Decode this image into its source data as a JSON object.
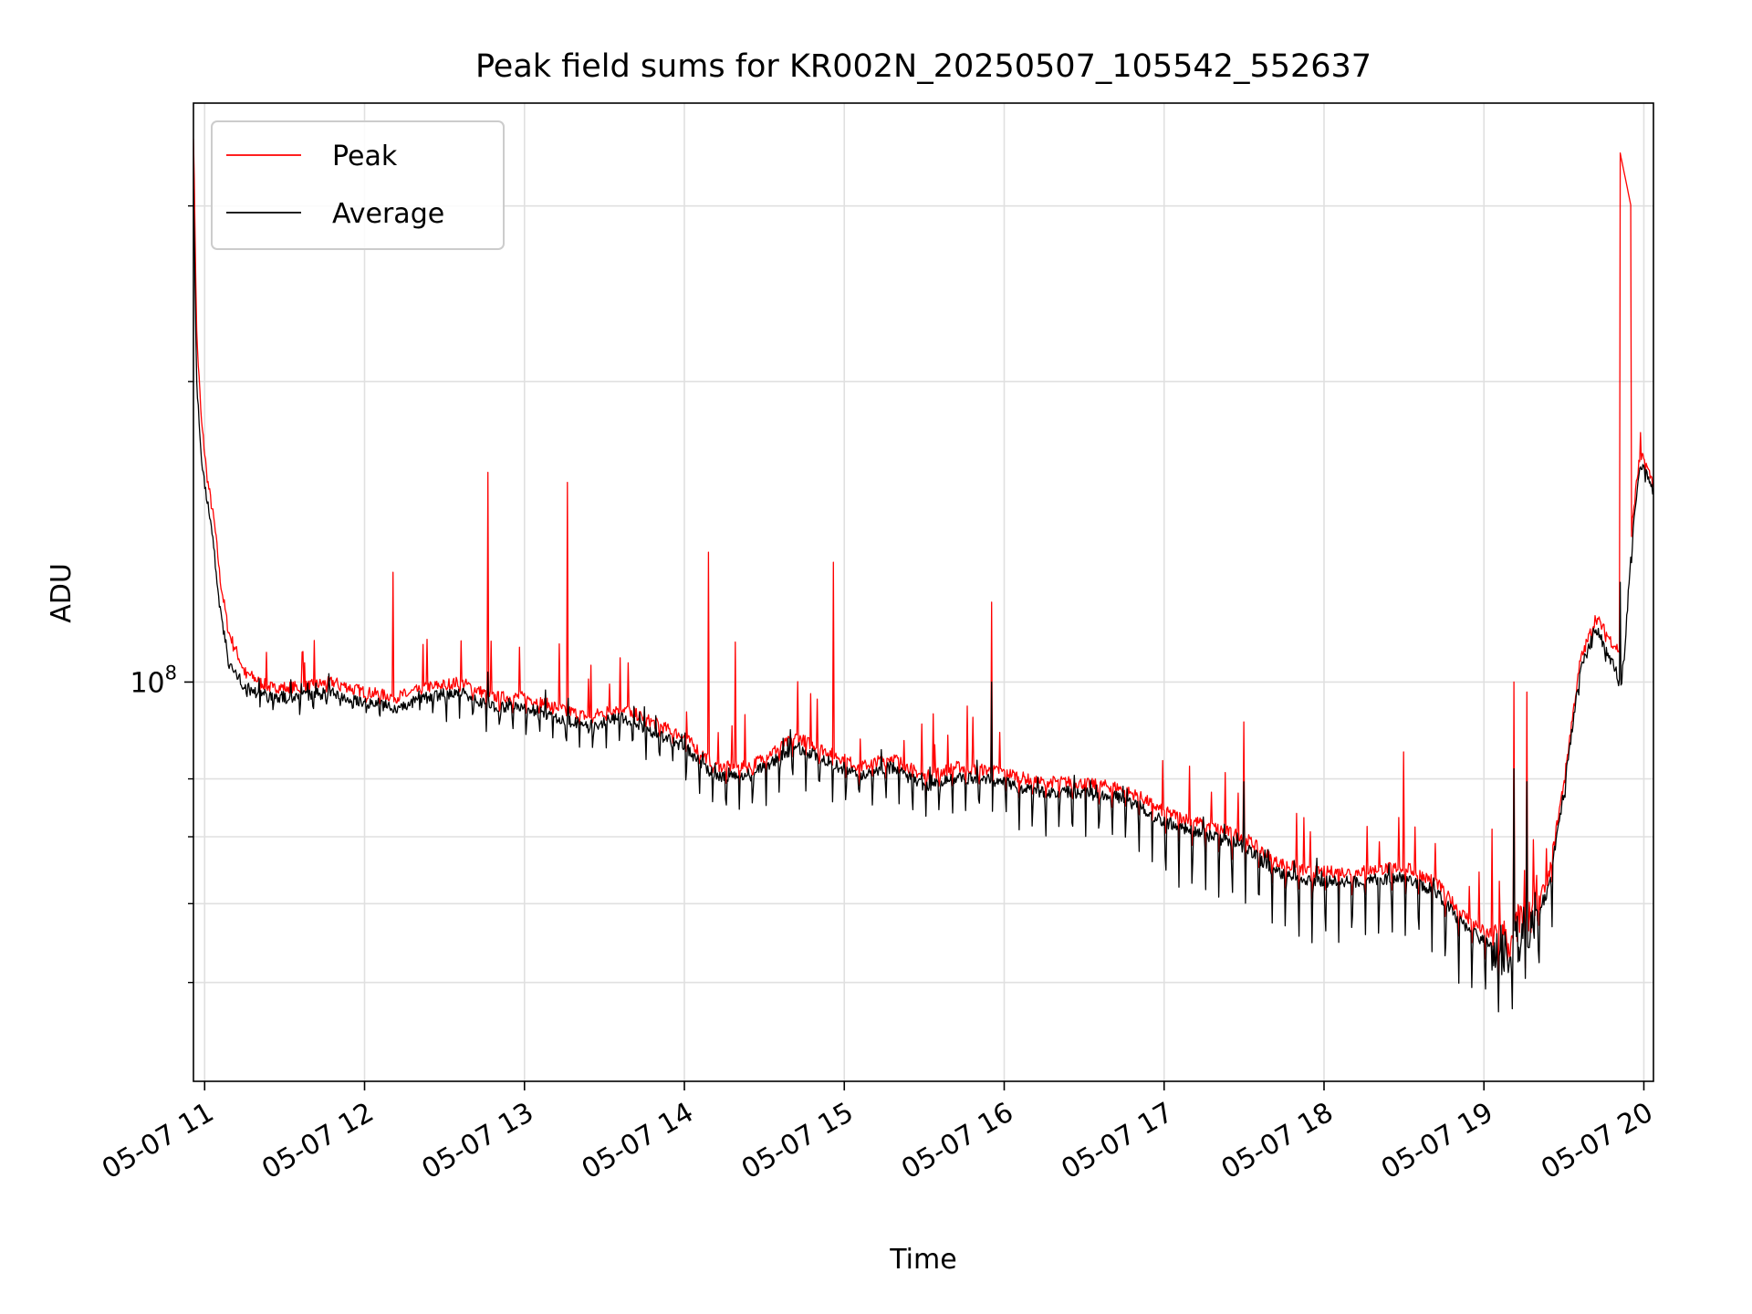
{
  "chart_data": {
    "type": "line",
    "title": "Peak field sums for KR002N_20250507_105542_552637",
    "xlabel": "Time",
    "ylabel": "ADU",
    "yscale": "log",
    "xlim": [
      10.93,
      20.06
    ],
    "ylim_log10": [
      7.6,
      8.58
    ],
    "grid": true,
    "legend_position": "upper-left",
    "x_ticks": [
      {
        "value": 11,
        "label": "05-07 11"
      },
      {
        "value": 12,
        "label": "05-07 12"
      },
      {
        "value": 13,
        "label": "05-07 13"
      },
      {
        "value": 14,
        "label": "05-07 14"
      },
      {
        "value": 15,
        "label": "05-07 15"
      },
      {
        "value": 16,
        "label": "05-07 16"
      },
      {
        "value": 17,
        "label": "05-07 17"
      },
      {
        "value": 18,
        "label": "05-07 18"
      },
      {
        "value": 19,
        "label": "05-07 19"
      },
      {
        "value": 20,
        "label": "05-07 20"
      }
    ],
    "y_ticks": [
      {
        "log10": 8.0,
        "label_base": "10",
        "label_exp": "8"
      }
    ],
    "y_minor_ticks_log10": [
      7.699,
      7.778,
      7.845,
      7.903,
      8.301,
      8.477
    ],
    "series": [
      {
        "name": "Peak",
        "color": "#ff0000",
        "base": [
          [
            10.93,
            8.55
          ],
          [
            10.95,
            8.35
          ],
          [
            10.98,
            8.26
          ],
          [
            11.02,
            8.2
          ],
          [
            11.06,
            8.16
          ],
          [
            11.1,
            8.1
          ],
          [
            11.15,
            8.05
          ],
          [
            11.25,
            8.01
          ],
          [
            11.4,
            7.995
          ],
          [
            11.6,
            7.995
          ],
          [
            11.8,
            8.0
          ],
          [
            12.0,
            7.99
          ],
          [
            12.2,
            7.985
          ],
          [
            12.4,
            7.995
          ],
          [
            12.6,
            8.0
          ],
          [
            12.8,
            7.985
          ],
          [
            13.0,
            7.985
          ],
          [
            13.2,
            7.975
          ],
          [
            13.4,
            7.965
          ],
          [
            13.6,
            7.975
          ],
          [
            13.8,
            7.96
          ],
          [
            14.0,
            7.945
          ],
          [
            14.2,
            7.915
          ],
          [
            14.4,
            7.915
          ],
          [
            14.7,
            7.945
          ],
          [
            14.9,
            7.93
          ],
          [
            15.1,
            7.915
          ],
          [
            15.3,
            7.925
          ],
          [
            15.5,
            7.905
          ],
          [
            15.7,
            7.915
          ],
          [
            16.0,
            7.91
          ],
          [
            16.2,
            7.9
          ],
          [
            16.4,
            7.9
          ],
          [
            16.7,
            7.895
          ],
          [
            16.85,
            7.885
          ],
          [
            17.0,
            7.87
          ],
          [
            17.3,
            7.855
          ],
          [
            17.5,
            7.845
          ],
          [
            17.7,
            7.82
          ],
          [
            17.9,
            7.81
          ],
          [
            18.2,
            7.81
          ],
          [
            18.5,
            7.815
          ],
          [
            18.7,
            7.8
          ],
          [
            18.85,
            7.77
          ],
          [
            19.0,
            7.75
          ],
          [
            19.15,
            7.74
          ],
          [
            19.3,
            7.77
          ],
          [
            19.4,
            7.8
          ],
          [
            19.5,
            7.9
          ],
          [
            19.6,
            8.02
          ],
          [
            19.7,
            8.065
          ],
          [
            19.8,
            8.04
          ],
          [
            19.86,
            8.03
          ],
          [
            19.88,
            8.05
          ],
          [
            19.92,
            8.15
          ],
          [
            19.97,
            8.22
          ],
          [
            20.0,
            8.225
          ],
          [
            20.03,
            8.21
          ],
          [
            20.06,
            8.2
          ]
        ],
        "spikes": [
          [
            12.18,
            8.11
          ],
          [
            12.77,
            8.21
          ],
          [
            13.27,
            8.2
          ],
          [
            14.15,
            8.13
          ],
          [
            14.32,
            8.04
          ],
          [
            14.93,
            8.12
          ],
          [
            15.92,
            8.08
          ],
          [
            17.5,
            7.96
          ],
          [
            18.5,
            7.93
          ],
          [
            19.19,
            8.0
          ],
          [
            19.27,
            7.99
          ],
          [
            19.85,
            8.55
          ],
          [
            19.98,
            8.25
          ]
        ]
      },
      {
        "name": "Average",
        "color": "#000000",
        "base": [
          [
            10.93,
            8.5
          ],
          [
            10.95,
            8.3
          ],
          [
            10.98,
            8.22
          ],
          [
            11.02,
            8.18
          ],
          [
            11.06,
            8.13
          ],
          [
            11.1,
            8.07
          ],
          [
            11.15,
            8.02
          ],
          [
            11.25,
            7.995
          ],
          [
            11.4,
            7.985
          ],
          [
            11.6,
            7.985
          ],
          [
            11.8,
            7.99
          ],
          [
            12.0,
            7.98
          ],
          [
            12.2,
            7.975
          ],
          [
            12.4,
            7.985
          ],
          [
            12.6,
            7.99
          ],
          [
            12.8,
            7.975
          ],
          [
            13.0,
            7.975
          ],
          [
            13.2,
            7.965
          ],
          [
            13.4,
            7.955
          ],
          [
            13.6,
            7.965
          ],
          [
            13.8,
            7.95
          ],
          [
            14.0,
            7.935
          ],
          [
            14.2,
            7.905
          ],
          [
            14.4,
            7.905
          ],
          [
            14.7,
            7.935
          ],
          [
            14.9,
            7.92
          ],
          [
            15.1,
            7.905
          ],
          [
            15.3,
            7.915
          ],
          [
            15.5,
            7.895
          ],
          [
            15.7,
            7.905
          ],
          [
            16.0,
            7.9
          ],
          [
            16.2,
            7.89
          ],
          [
            16.4,
            7.89
          ],
          [
            16.7,
            7.885
          ],
          [
            16.85,
            7.875
          ],
          [
            17.0,
            7.86
          ],
          [
            17.3,
            7.845
          ],
          [
            17.5,
            7.835
          ],
          [
            17.7,
            7.81
          ],
          [
            17.9,
            7.8
          ],
          [
            18.2,
            7.8
          ],
          [
            18.5,
            7.805
          ],
          [
            18.7,
            7.79
          ],
          [
            18.85,
            7.76
          ],
          [
            19.0,
            7.74
          ],
          [
            19.15,
            7.73
          ],
          [
            19.3,
            7.76
          ],
          [
            19.4,
            7.79
          ],
          [
            19.5,
            7.89
          ],
          [
            19.6,
            8.01
          ],
          [
            19.7,
            8.055
          ],
          [
            19.8,
            8.02
          ],
          [
            19.86,
            8.0
          ],
          [
            19.88,
            8.03
          ],
          [
            19.92,
            8.13
          ],
          [
            19.97,
            8.21
          ],
          [
            20.0,
            8.215
          ],
          [
            20.03,
            8.2
          ],
          [
            20.06,
            8.19
          ]
        ],
        "spikes": [
          [
            12.77,
            8.01
          ],
          [
            15.92,
            8.0
          ],
          [
            17.5,
            7.9
          ],
          [
            19.19,
            7.9
          ],
          [
            19.27,
            7.9
          ],
          [
            19.85,
            8.1
          ]
        ]
      }
    ]
  }
}
